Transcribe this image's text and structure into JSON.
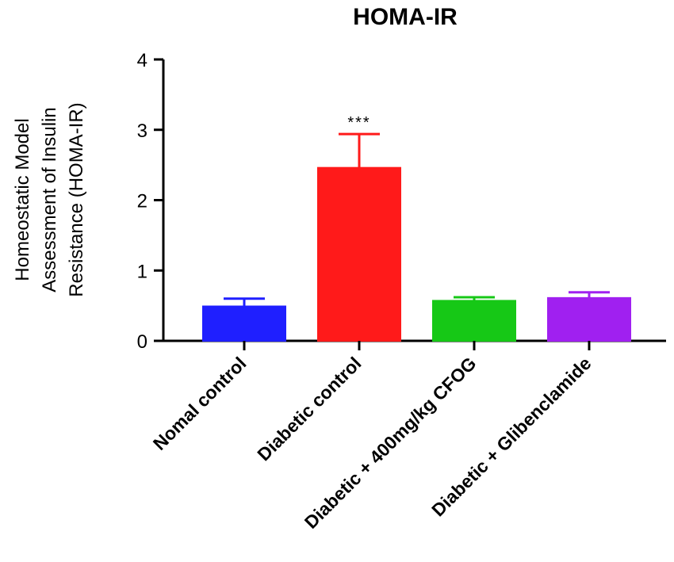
{
  "chart_data": {
    "type": "bar",
    "title": "HOMA-IR",
    "ylabel_lines": [
      "Homeostatic Model",
      "Assessment of Insulin",
      "Resistance (HOMA-IR)"
    ],
    "xlabel": "",
    "ylim": [
      0,
      4
    ],
    "yticks": [
      "0",
      "1",
      "2",
      "3",
      "4"
    ],
    "categories": [
      "Nomal control",
      "Diabetic control",
      "Diabetic + 400mg/kg CFOG",
      "Diabetic + Glibenclamide"
    ],
    "values": [
      0.49,
      2.46,
      0.57,
      0.61
    ],
    "errors": [
      0.11,
      0.48,
      0.05,
      0.08
    ],
    "colors": [
      "#1f1fff",
      "#ff1a1a",
      "#16c816",
      "#a020f0"
    ],
    "annotations": [
      "",
      "***",
      "",
      ""
    ],
    "grid": false,
    "legend": "none"
  }
}
